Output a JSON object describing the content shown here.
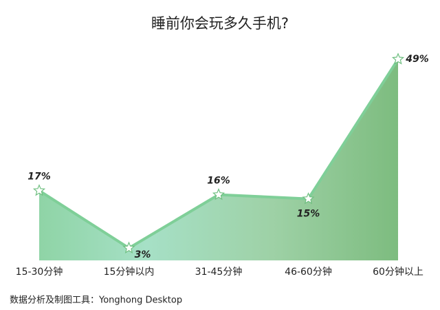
{
  "chart_data": {
    "type": "area",
    "title": "睡前你会玩多久手机?",
    "categories": [
      "15-30分钟",
      "15分钟以内",
      "31-45分钟",
      "46-60分钟",
      "60分钟以上"
    ],
    "values": [
      17,
      3,
      16,
      15,
      49
    ],
    "value_labels": [
      "17%",
      "3%",
      "16%",
      "15%",
      "49%"
    ],
    "color": "#7fcf98",
    "ylim": [
      0,
      50
    ]
  },
  "footer": "数据分析及制图工具：Yonghong Desktop"
}
